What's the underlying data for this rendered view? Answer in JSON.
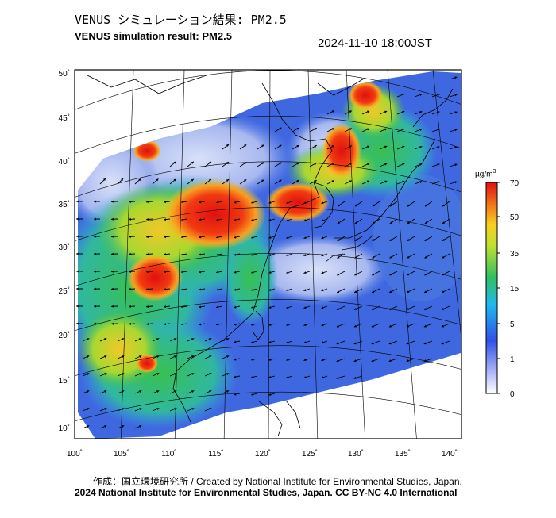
{
  "title_jp": "VENUS シミュレーション結果: PM2.5",
  "title_en": "VENUS simulation result: PM2.5",
  "timestamp": "2024-11-10 18:00JST",
  "colorbar": {
    "unit_base": "µg/m",
    "unit_sup": "3",
    "labels": [
      "70",
      "50",
      "35",
      "15",
      "5",
      "1",
      "0"
    ]
  },
  "axes": {
    "lat_labels": [
      "50˚",
      "45˚",
      "40˚",
      "35˚",
      "30˚",
      "25˚",
      "20˚",
      "15˚",
      "10˚"
    ],
    "lon_labels": [
      "100˚",
      "105˚",
      "110˚",
      "115˚",
      "120˚",
      "125˚",
      "130˚",
      "135˚",
      "140˚"
    ]
  },
  "credit_jp": "作成：国立環境研究所 / Created by National Institute for Environmental Studies, Japan.",
  "copyright": "2024 National Institute for Environmental Studies, Japan. CC BY-NC 4.0 International"
}
